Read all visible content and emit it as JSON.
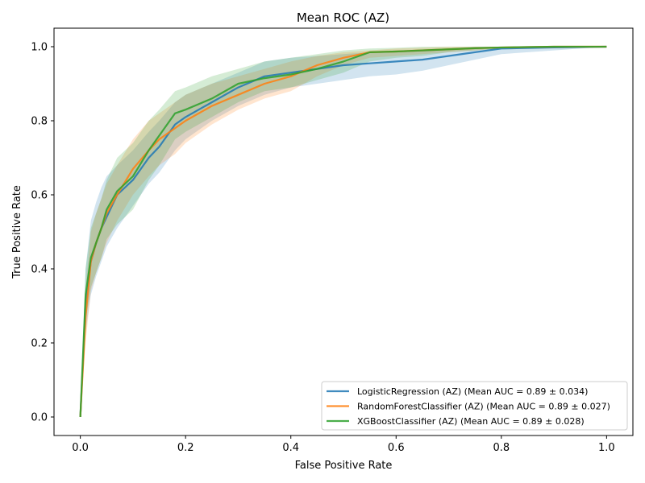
{
  "chart_data": {
    "type": "line",
    "title": "Mean ROC (AZ)",
    "xlabel": "False Positive Rate",
    "ylabel": "True Positive Rate",
    "xlim": [
      -0.05,
      1.05
    ],
    "ylim": [
      -0.05,
      1.05
    ],
    "xticks": [
      0.0,
      0.2,
      0.4,
      0.6,
      0.8,
      1.0
    ],
    "yticks": [
      0.0,
      0.2,
      0.4,
      0.6,
      0.8,
      1.0
    ],
    "xtick_labels": [
      "0.0",
      "0.2",
      "0.4",
      "0.6",
      "0.8",
      "1.0"
    ],
    "ytick_labels": [
      "0.0",
      "0.2",
      "0.4",
      "0.6",
      "0.8",
      "1.0"
    ],
    "grid": false,
    "legend_position": "lower-right",
    "x": [
      0.0,
      0.01,
      0.02,
      0.03,
      0.04,
      0.05,
      0.07,
      0.1,
      0.13,
      0.15,
      0.18,
      0.2,
      0.25,
      0.3,
      0.35,
      0.4,
      0.45,
      0.5,
      0.55,
      0.6,
      0.65,
      0.7,
      0.75,
      0.8,
      0.9,
      1.0
    ],
    "series": [
      {
        "name": "LogisticRegression (AZ) (Mean AUC = 0.89 ± 0.034)",
        "color": "#1f77b4",
        "mean": [
          0.0,
          0.3,
          0.42,
          0.47,
          0.51,
          0.54,
          0.6,
          0.64,
          0.7,
          0.73,
          0.79,
          0.81,
          0.85,
          0.89,
          0.92,
          0.93,
          0.94,
          0.95,
          0.955,
          0.96,
          0.965,
          0.975,
          0.985,
          0.995,
          0.998,
          1.0
        ],
        "upper": [
          0.0,
          0.4,
          0.53,
          0.58,
          0.62,
          0.65,
          0.68,
          0.72,
          0.77,
          0.8,
          0.85,
          0.87,
          0.9,
          0.93,
          0.96,
          0.97,
          0.975,
          0.98,
          0.985,
          0.99,
          0.99,
          0.995,
          1.0,
          1.0,
          1.0,
          1.0
        ],
        "lower": [
          0.0,
          0.23,
          0.33,
          0.38,
          0.42,
          0.46,
          0.51,
          0.57,
          0.63,
          0.66,
          0.72,
          0.75,
          0.8,
          0.84,
          0.87,
          0.89,
          0.9,
          0.91,
          0.92,
          0.925,
          0.935,
          0.95,
          0.965,
          0.98,
          0.99,
          1.0
        ]
      },
      {
        "name": "RandomForestClassifier (AZ) (Mean AUC = 0.89 ± 0.027)",
        "color": "#ff7f0e",
        "mean": [
          0.0,
          0.27,
          0.42,
          0.47,
          0.51,
          0.55,
          0.6,
          0.67,
          0.72,
          0.75,
          0.78,
          0.8,
          0.84,
          0.87,
          0.9,
          0.92,
          0.95,
          0.97,
          0.985,
          0.987,
          0.99,
          0.993,
          0.996,
          0.998,
          1.0,
          1.0
        ],
        "upper": [
          0.0,
          0.34,
          0.5,
          0.55,
          0.59,
          0.63,
          0.68,
          0.75,
          0.8,
          0.82,
          0.85,
          0.87,
          0.9,
          0.92,
          0.94,
          0.96,
          0.975,
          0.985,
          0.99,
          0.995,
          0.997,
          1.0,
          1.0,
          1.0,
          1.0,
          1.0
        ],
        "lower": [
          0.0,
          0.2,
          0.34,
          0.39,
          0.43,
          0.47,
          0.53,
          0.6,
          0.65,
          0.68,
          0.71,
          0.74,
          0.79,
          0.83,
          0.86,
          0.88,
          0.92,
          0.95,
          0.97,
          0.975,
          0.98,
          0.985,
          0.99,
          0.995,
          1.0,
          1.0
        ]
      },
      {
        "name": "XGBoostClassifier (AZ) (Mean AUC = 0.89 ± 0.028)",
        "color": "#2ca02c",
        "mean": [
          0.0,
          0.33,
          0.43,
          0.47,
          0.51,
          0.56,
          0.61,
          0.65,
          0.72,
          0.76,
          0.82,
          0.83,
          0.86,
          0.9,
          0.915,
          0.925,
          0.94,
          0.96,
          0.985,
          0.987,
          0.99,
          0.993,
          0.996,
          0.998,
          1.0,
          1.0
        ],
        "upper": [
          0.0,
          0.4,
          0.51,
          0.55,
          0.59,
          0.64,
          0.7,
          0.74,
          0.8,
          0.83,
          0.88,
          0.89,
          0.92,
          0.94,
          0.96,
          0.97,
          0.98,
          0.99,
          0.995,
          0.997,
          1.0,
          1.0,
          1.0,
          1.0,
          1.0,
          1.0
        ],
        "lower": [
          0.0,
          0.26,
          0.35,
          0.39,
          0.43,
          0.48,
          0.52,
          0.56,
          0.64,
          0.68,
          0.75,
          0.77,
          0.81,
          0.85,
          0.88,
          0.89,
          0.91,
          0.93,
          0.96,
          0.97,
          0.975,
          0.985,
          0.99,
          0.995,
          1.0,
          1.0
        ]
      }
    ]
  }
}
